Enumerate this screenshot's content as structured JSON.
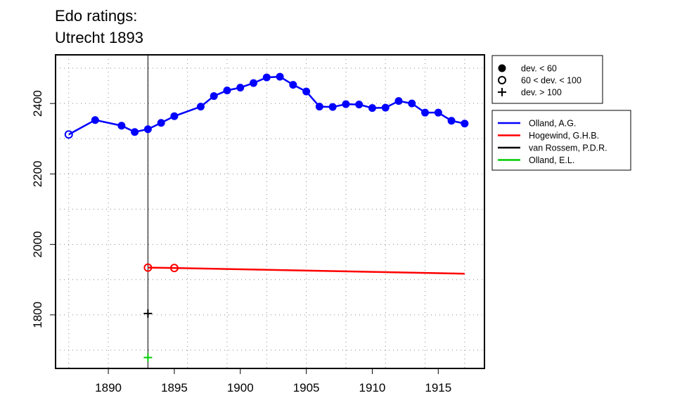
{
  "chart_data": {
    "type": "line",
    "title": [
      "Edo ratings:",
      "Utrecht 1893"
    ],
    "xlabel": "",
    "ylabel": "",
    "xlim": [
      1886,
      1918.5
    ],
    "ylim": [
      1648,
      2538
    ],
    "x_ticks": [
      1890,
      1895,
      1900,
      1905,
      1910,
      1915
    ],
    "y_ticks": [
      1800,
      2000,
      2200,
      2400
    ],
    "x_grid": [
      1887,
      1890,
      1893,
      1896,
      1899,
      1902,
      1905,
      1908,
      1911,
      1914,
      1917
    ],
    "y_grid": [
      1700,
      1800,
      1900,
      2000,
      2100,
      2200,
      2300,
      2400,
      2500
    ],
    "grid": true,
    "vline": 1893,
    "marker_legend": {
      "placement": "top-right-outside",
      "items": [
        {
          "symbol": "filled-circle",
          "label": "dev. < 60"
        },
        {
          "symbol": "open-circle",
          "label": "60 < dev. < 100"
        },
        {
          "symbol": "plus",
          "label": "dev. > 100"
        }
      ]
    },
    "series": [
      {
        "name": "Olland, A.G.",
        "color": "#0000ff",
        "points": [
          {
            "x": 1887,
            "y": 2312,
            "m": "open-circle"
          },
          {
            "x": 1889,
            "y": 2353,
            "m": "filled-circle"
          },
          {
            "x": 1891,
            "y": 2337,
            "m": "filled-circle"
          },
          {
            "x": 1892,
            "y": 2319,
            "m": "filled-circle"
          },
          {
            "x": 1893,
            "y": 2327,
            "m": "filled-circle"
          },
          {
            "x": 1894,
            "y": 2345,
            "m": "filled-circle"
          },
          {
            "x": 1895,
            "y": 2364,
            "m": "filled-circle"
          },
          {
            "x": 1897,
            "y": 2391,
            "m": "filled-circle"
          },
          {
            "x": 1898,
            "y": 2421,
            "m": "filled-circle"
          },
          {
            "x": 1899,
            "y": 2437,
            "m": "filled-circle"
          },
          {
            "x": 1900,
            "y": 2445,
            "m": "filled-circle"
          },
          {
            "x": 1901,
            "y": 2458,
            "m": "filled-circle"
          },
          {
            "x": 1902,
            "y": 2474,
            "m": "filled-circle"
          },
          {
            "x": 1903,
            "y": 2476,
            "m": "filled-circle"
          },
          {
            "x": 1904,
            "y": 2453,
            "m": "filled-circle"
          },
          {
            "x": 1905,
            "y": 2434,
            "m": "filled-circle"
          },
          {
            "x": 1906,
            "y": 2391,
            "m": "filled-circle"
          },
          {
            "x": 1907,
            "y": 2390,
            "m": "filled-circle"
          },
          {
            "x": 1908,
            "y": 2398,
            "m": "filled-circle"
          },
          {
            "x": 1909,
            "y": 2397,
            "m": "filled-circle"
          },
          {
            "x": 1910,
            "y": 2387,
            "m": "filled-circle"
          },
          {
            "x": 1911,
            "y": 2388,
            "m": "filled-circle"
          },
          {
            "x": 1912,
            "y": 2407,
            "m": "filled-circle"
          },
          {
            "x": 1913,
            "y": 2400,
            "m": "filled-circle"
          },
          {
            "x": 1914,
            "y": 2374,
            "m": "filled-circle"
          },
          {
            "x": 1915,
            "y": 2374,
            "m": "filled-circle"
          },
          {
            "x": 1916,
            "y": 2351,
            "m": "filled-circle"
          },
          {
            "x": 1917,
            "y": 2343,
            "m": "filled-circle"
          }
        ]
      },
      {
        "name": "Hogewind, G.H.B.",
        "color": "#ff0000",
        "points": [
          {
            "x": 1893,
            "y": 1934,
            "m": "open-circle"
          },
          {
            "x": 1895,
            "y": 1933,
            "m": "open-circle"
          },
          {
            "x": 1917,
            "y": 1917,
            "m": "none"
          }
        ]
      },
      {
        "name": "van Rossem, P.D.R.",
        "color": "#000000",
        "points": [
          {
            "x": 1893,
            "y": 1804,
            "m": "plus"
          }
        ]
      },
      {
        "name": "Olland, E.L.",
        "color": "#00cc00",
        "points": [
          {
            "x": 1893,
            "y": 1679,
            "m": "plus"
          }
        ]
      }
    ]
  }
}
